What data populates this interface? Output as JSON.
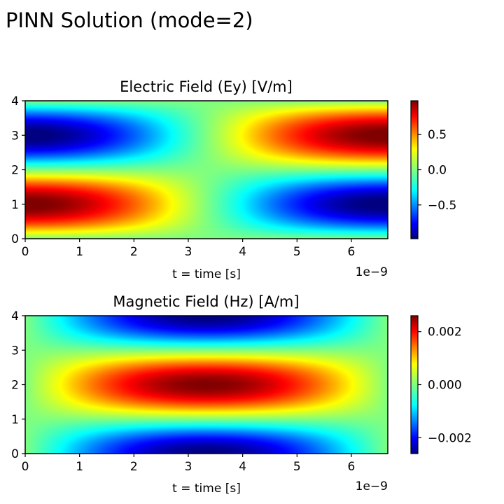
{
  "suptitle": "PINN Solution (mode=2)",
  "colormap": {
    "name": "jet",
    "stops": [
      "#000080",
      "#0000ff",
      "#00ffff",
      "#ffff00",
      "#ff0000",
      "#800000"
    ]
  },
  "chart_data": [
    {
      "type": "heatmap",
      "title": "Electric Field (Ey) [V/m]",
      "xlabel": "t = time [s]",
      "ylabel": "",
      "x_offset_label": "1e−9",
      "xlim": [
        0,
        6.67
      ],
      "ylim": [
        0,
        4
      ],
      "x_ticks": [
        0,
        1,
        2,
        3,
        4,
        5,
        6
      ],
      "y_ticks": [
        0,
        1,
        2,
        3,
        4
      ],
      "x_tick_labels": [
        "0",
        "1",
        "2",
        "3",
        "4",
        "5",
        "6"
      ],
      "y_tick_labels": [
        "0",
        "1",
        "2",
        "3",
        "4"
      ],
      "field": "Ey = sin(pi*y/2) * cos(pi*t/6.67)",
      "zlim": [
        -0.98,
        0.98
      ],
      "colorbar_ticks": [
        0.5,
        0.0,
        -0.5
      ],
      "colorbar_tick_labels": [
        "0.5",
        "0.0",
        "−0.5"
      ]
    },
    {
      "type": "heatmap",
      "title": "Magnetic Field (Hz) [A/m]",
      "xlabel": "t = time [s]",
      "ylabel": "",
      "x_offset_label": "1e−9",
      "xlim": [
        0,
        6.67
      ],
      "ylim": [
        0,
        4
      ],
      "x_ticks": [
        0,
        1,
        2,
        3,
        4,
        5,
        6
      ],
      "y_ticks": [
        0,
        1,
        2,
        3,
        4
      ],
      "x_tick_labels": [
        "0",
        "1",
        "2",
        "3",
        "4",
        "5",
        "6"
      ],
      "y_tick_labels": [
        "0",
        "1",
        "2",
        "3",
        "4"
      ],
      "field": "Hz = -0.0026 * cos(pi*y/2) * sin(pi*t/6.67)",
      "zlim": [
        -0.0026,
        0.0026
      ],
      "colorbar_ticks": [
        0.002,
        0.0,
        -0.002
      ],
      "colorbar_tick_labels": [
        "0.002",
        "0.000",
        "−0.002"
      ]
    }
  ]
}
